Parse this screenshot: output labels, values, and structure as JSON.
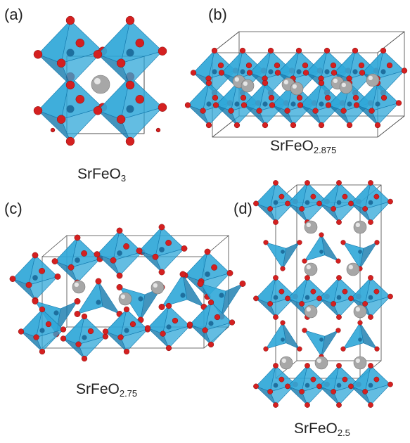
{
  "panels": [
    {
      "letter": "(a)",
      "formula_base": "SrFeO",
      "formula_sub": "3"
    },
    {
      "letter": "(b)",
      "formula_base": "SrFeO",
      "formula_sub": "2.875"
    },
    {
      "letter": "(c)",
      "formula_base": "SrFeO",
      "formula_sub": "2.75"
    },
    {
      "letter": "(d)",
      "formula_base": "SrFeO",
      "formula_sub": "2.5"
    }
  ],
  "colors": {
    "polyhedron": "#2fa7d8",
    "polyhedron_dark": "#1479ad",
    "oxygen": "#d42020",
    "strontium": "#a7a7a7",
    "iron": "#1e6f9e",
    "cell_line": "#444444"
  }
}
